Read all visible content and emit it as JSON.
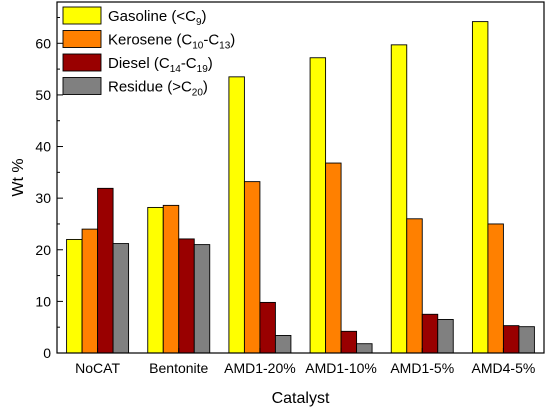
{
  "chart_data": {
    "type": "bar",
    "xlabel": "Catalyst",
    "ylabel": "Wt %",
    "ylim": [
      0,
      68
    ],
    "yticks": [
      "0",
      "10",
      "20",
      "30",
      "40",
      "50",
      "60"
    ],
    "categories": [
      "NoCAT",
      "Bentonite",
      "AMD1-20%",
      "AMD1-10%",
      "AMD1-5%",
      "AMD4-5%"
    ],
    "series": [
      {
        "name": "Gasoline (<C9)",
        "label_main": "Gasoline (<C",
        "label_sub1": "9",
        "label_mid": "",
        "label_sub2": "",
        "label_end": ")",
        "color": "#ffff00",
        "values": [
          22.0,
          28.2,
          53.5,
          57.2,
          59.7,
          64.2
        ]
      },
      {
        "name": "Kerosene (C10-C13)",
        "label_main": "Kerosene (C",
        "label_sub1": "10",
        "label_mid": "-C",
        "label_sub2": "13",
        "label_end": ")",
        "color": "#ff8000",
        "values": [
          24.0,
          28.6,
          33.2,
          36.8,
          26.0,
          25.0
        ]
      },
      {
        "name": "Diesel (C14-C19)",
        "label_main": "Diesel (C",
        "label_sub1": "14",
        "label_mid": "-C",
        "label_sub2": "19",
        "label_end": ")",
        "color": "#990000",
        "values": [
          31.9,
          22.1,
          9.8,
          4.2,
          7.5,
          5.3
        ]
      },
      {
        "name": "Residue (>C20)",
        "label_main": "Residue (>C",
        "label_sub1": "20",
        "label_mid": "",
        "label_sub2": "",
        "label_end": ")",
        "color": "#808080",
        "values": [
          21.2,
          21.0,
          3.4,
          1.8,
          6.5,
          5.1
        ]
      }
    ],
    "legend_position": "top-left",
    "grid": false
  }
}
